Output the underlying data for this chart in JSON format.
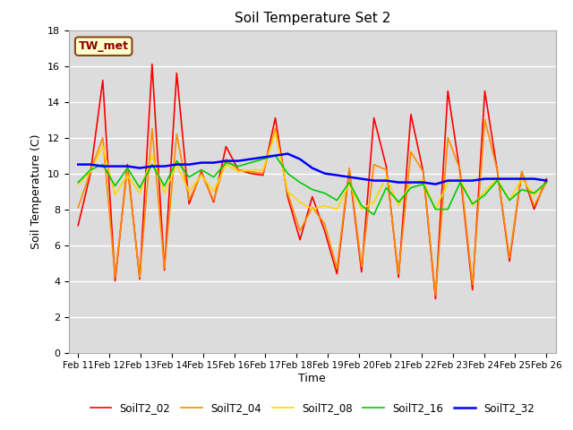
{
  "title": "Soil Temperature Set 2",
  "xlabel": "Time",
  "ylabel": "Soil Temperature (C)",
  "ylim": [
    0,
    18
  ],
  "yticks": [
    0,
    2,
    4,
    6,
    8,
    10,
    12,
    14,
    16,
    18
  ],
  "x_labels": [
    "Feb 11",
    "Feb 12",
    "Feb 13",
    "Feb 14",
    "Feb 15",
    "Feb 16",
    "Feb 17",
    "Feb 18",
    "Feb 19",
    "Feb 20",
    "Feb 21",
    "Feb 22",
    "Feb 23",
    "Feb 24",
    "Feb 25",
    "Feb 26"
  ],
  "annotation_text": "TW_met",
  "annotation_color": "#8B0000",
  "annotation_bg": "#FFFFCC",
  "annotation_border": "#8B4513",
  "legend_labels": [
    "SoilT2_02",
    "SoilT2_04",
    "SoilT2_08",
    "SoilT2_16",
    "SoilT2_32"
  ],
  "line_colors": [
    "#FF0000",
    "#FF8C00",
    "#FFD700",
    "#00CC00",
    "#0000FF"
  ],
  "line_widths": [
    1.2,
    1.2,
    1.2,
    1.2,
    1.8
  ],
  "plot_bg": "#DCDCDC",
  "grid_color": "#FFFFFF",
  "SoilT2_02": [
    7.1,
    10.0,
    15.2,
    4.0,
    10.5,
    4.1,
    16.1,
    4.6,
    15.6,
    8.3,
    10.1,
    8.4,
    11.5,
    10.2,
    10.0,
    9.9,
    13.1,
    8.7,
    6.3,
    8.7,
    6.8,
    4.4,
    10.2,
    4.5,
    13.1,
    10.4,
    4.2,
    13.3,
    10.1,
    3.0,
    14.6,
    10.0,
    3.5,
    14.6,
    10.2,
    5.1,
    10.1,
    8.0,
    9.7
  ],
  "SoilT2_04": [
    8.1,
    10.1,
    12.0,
    4.2,
    10.3,
    4.2,
    12.5,
    4.7,
    12.2,
    8.5,
    10.0,
    8.5,
    10.8,
    10.2,
    10.1,
    10.0,
    12.5,
    8.9,
    6.8,
    8.1,
    7.2,
    4.7,
    10.3,
    4.8,
    10.5,
    10.2,
    4.4,
    11.2,
    10.1,
    3.2,
    12.0,
    10.2,
    3.8,
    13.0,
    10.2,
    5.3,
    10.1,
    8.2,
    9.5
  ],
  "SoilT2_08": [
    9.4,
    10.1,
    11.5,
    8.8,
    9.9,
    8.9,
    11.0,
    8.9,
    10.5,
    9.0,
    9.9,
    9.0,
    10.5,
    10.1,
    10.2,
    10.2,
    12.3,
    9.0,
    8.4,
    8.0,
    8.2,
    8.0,
    9.4,
    8.0,
    8.4,
    9.8,
    8.2,
    9.5,
    9.6,
    8.0,
    9.5,
    9.7,
    8.2,
    9.0,
    9.7,
    8.5,
    9.7,
    8.8,
    9.5
  ],
  "SoilT2_16": [
    9.5,
    10.2,
    10.5,
    9.3,
    10.3,
    9.2,
    10.5,
    9.3,
    10.7,
    9.8,
    10.2,
    9.8,
    10.6,
    10.4,
    10.6,
    10.8,
    11.0,
    10.0,
    9.5,
    9.1,
    8.9,
    8.5,
    9.5,
    8.2,
    7.7,
    9.2,
    8.4,
    9.2,
    9.4,
    8.0,
    8.0,
    9.5,
    8.3,
    8.8,
    9.6,
    8.5,
    9.1,
    8.9,
    9.5
  ],
  "SoilT2_32": [
    10.5,
    10.5,
    10.4,
    10.4,
    10.4,
    10.3,
    10.4,
    10.4,
    10.5,
    10.5,
    10.6,
    10.6,
    10.7,
    10.7,
    10.8,
    10.9,
    11.0,
    11.1,
    10.8,
    10.3,
    10.0,
    9.9,
    9.8,
    9.7,
    9.6,
    9.6,
    9.5,
    9.5,
    9.5,
    9.4,
    9.6,
    9.6,
    9.6,
    9.7,
    9.7,
    9.7,
    9.7,
    9.7,
    9.6
  ]
}
